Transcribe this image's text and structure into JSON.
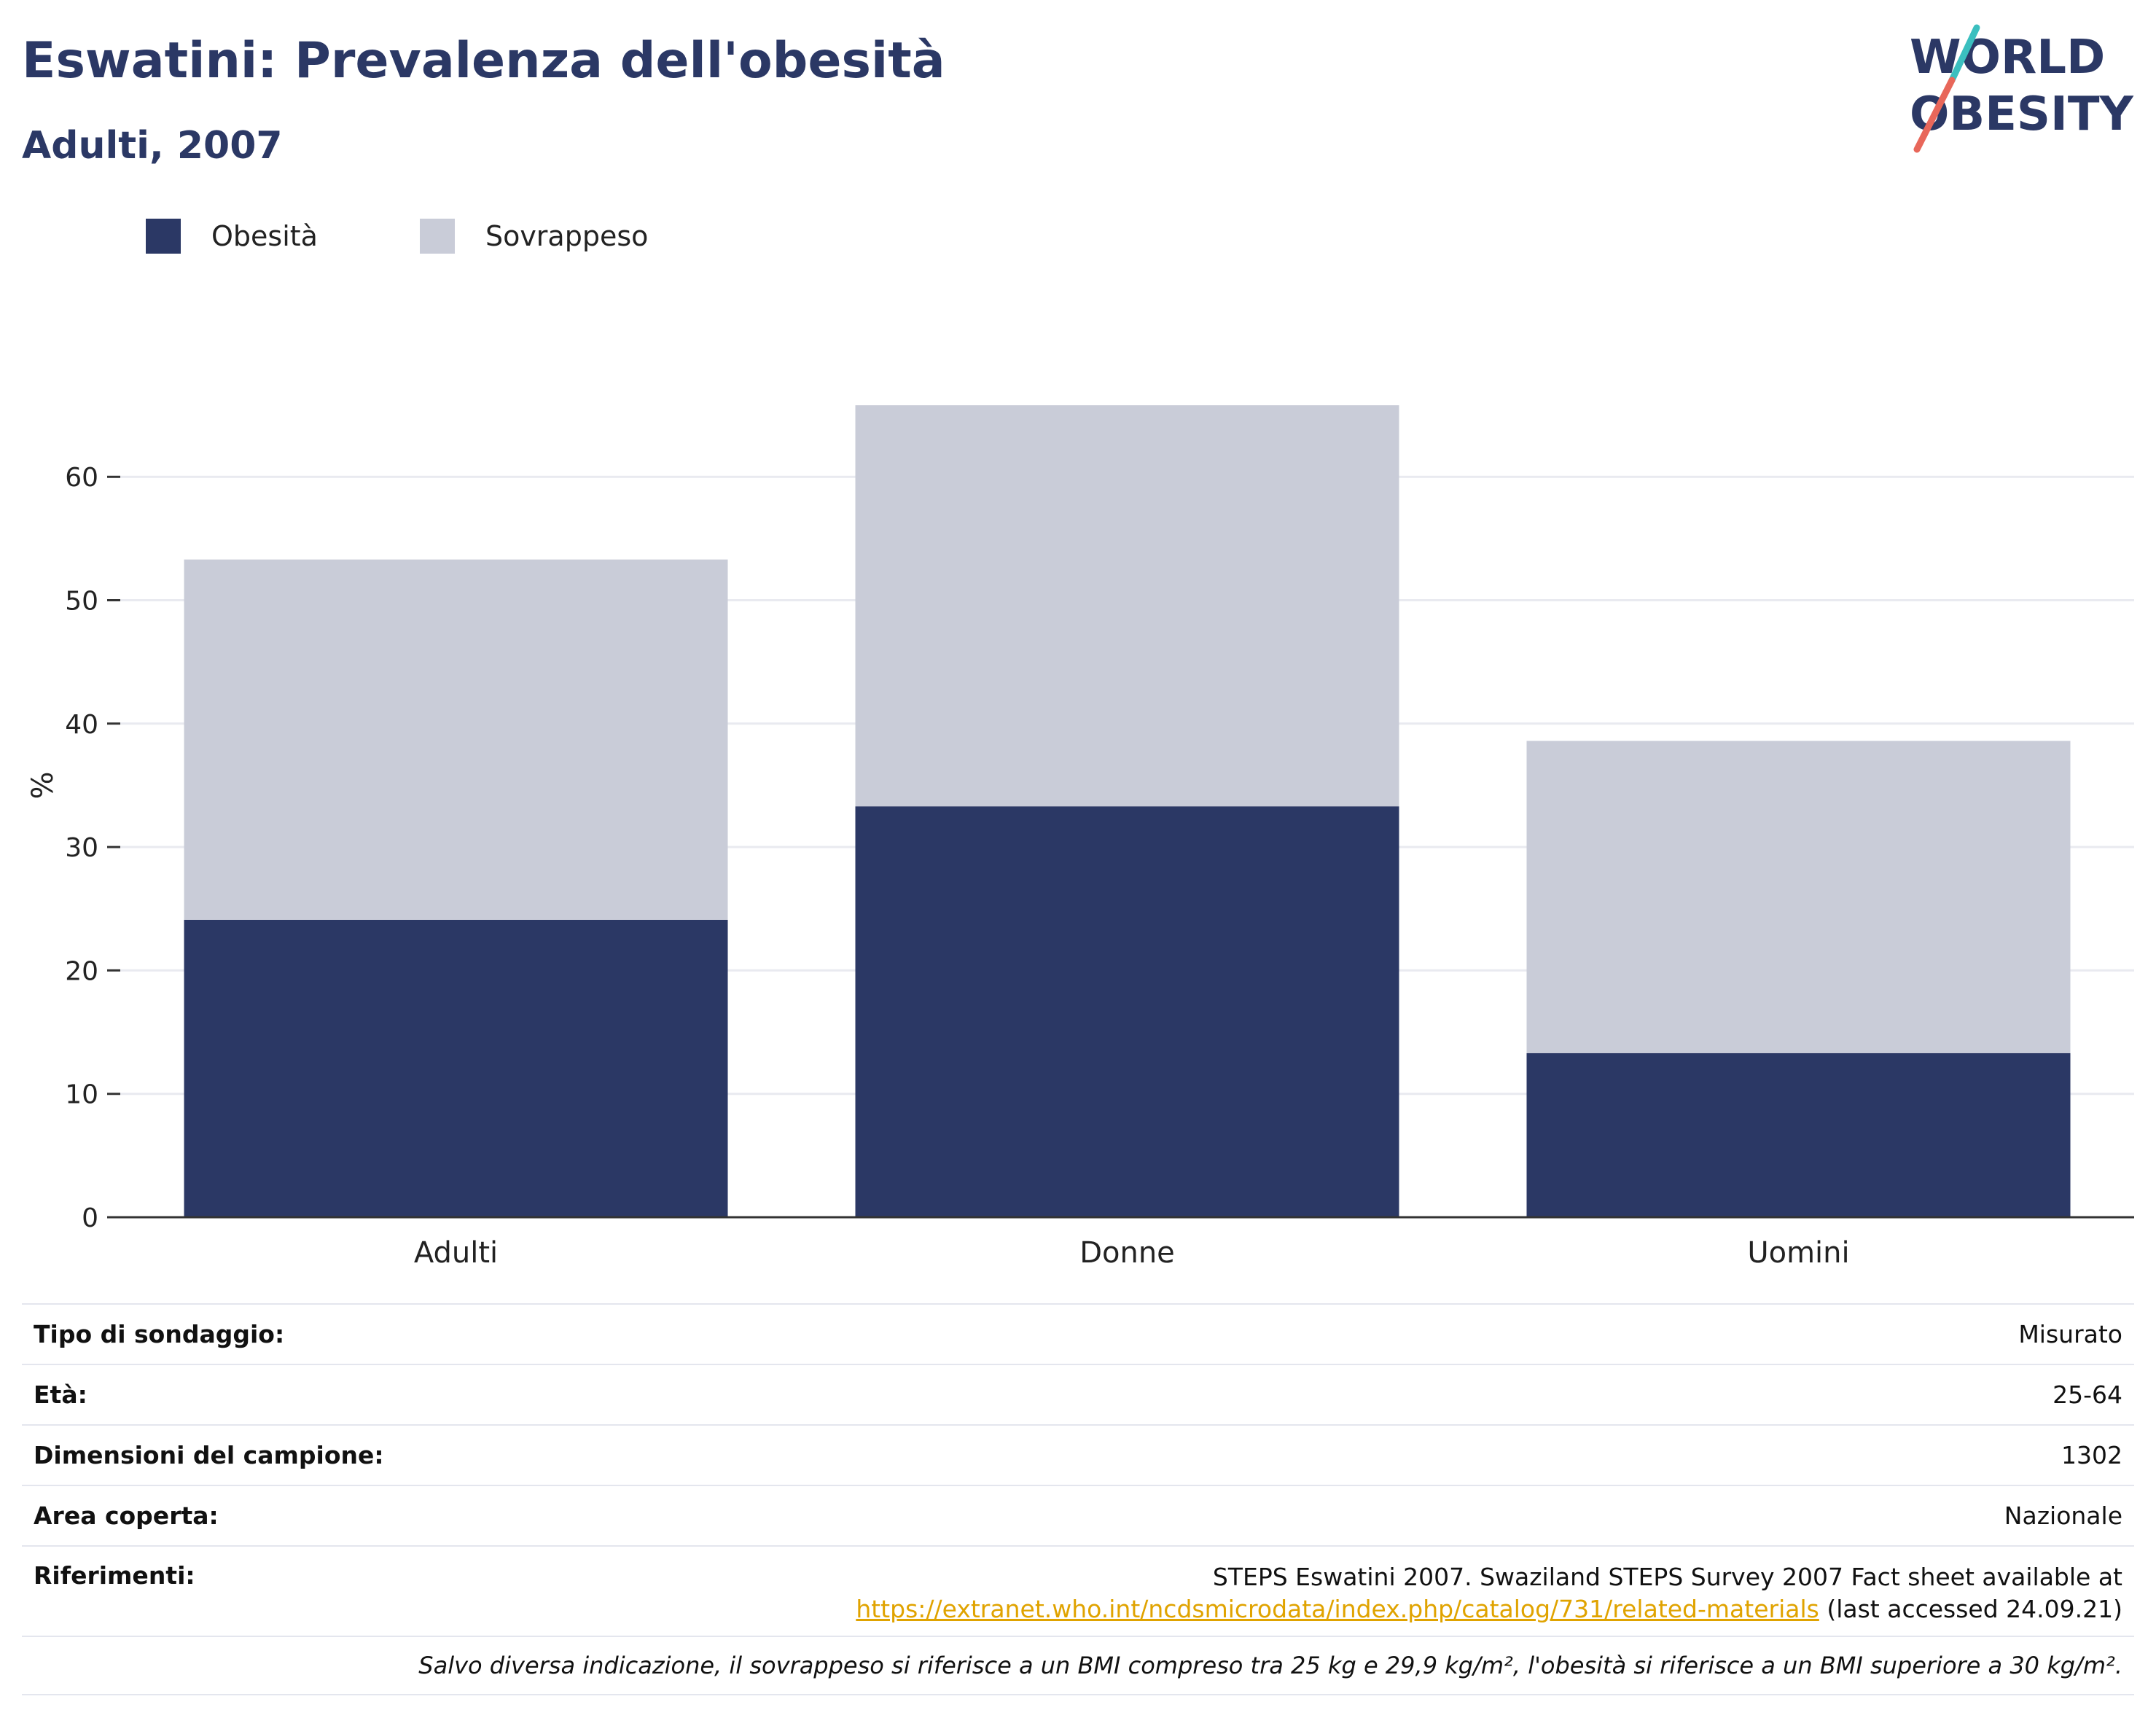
{
  "header": {
    "title": "Eswatini: Prevalenza dell'obesità",
    "subtitle": "Adulti, 2007"
  },
  "logo": {
    "line1": "WORLD",
    "line2": "OBESITY",
    "text_color": "#2b3865",
    "slash_top_color": "#3bbfbf",
    "slash_bottom_color": "#e8675a"
  },
  "legend": {
    "items": [
      {
        "label": "Obesità",
        "color": "#2b3865"
      },
      {
        "label": "Sovrappeso",
        "color": "#c9ccd8"
      }
    ]
  },
  "chart_data": {
    "type": "bar",
    "stacked": true,
    "categories": [
      "Adulti",
      "Donne",
      "Uomini"
    ],
    "series": [
      {
        "name": "Obesità",
        "color": "#2b3865",
        "values": [
          24.1,
          33.3,
          13.3
        ]
      },
      {
        "name": "Sovrappeso",
        "color": "#c9ccd8",
        "values": [
          29.2,
          32.5,
          25.3
        ]
      }
    ],
    "ylabel": "%",
    "ylim": [
      0,
      70
    ],
    "yticks": [
      0,
      10,
      20,
      30,
      40,
      50,
      60
    ],
    "grid": true,
    "legend_position": "top-left"
  },
  "info": {
    "rows": [
      {
        "label": "Tipo di sondaggio:",
        "value": "Misurato"
      },
      {
        "label": "Età:",
        "value": "25-64"
      },
      {
        "label": "Dimensioni del campione:",
        "value": "1302"
      },
      {
        "label": "Area coperta:",
        "value": "Nazionale"
      }
    ],
    "references": {
      "label": "Riferimenti:",
      "text": "STEPS Eswatini 2007. Swaziland STEPS Survey 2007 Fact sheet available at",
      "link": "https://extranet.who.int/ncdsmicrodata/index.php/catalog/731/related-materials",
      "suffix": " (last accessed 24.09.21)"
    },
    "note": "Salvo diversa indicazione, il sovrappeso si riferisce a un BMI compreso tra 25 kg e 29,9 kg/m², l'obesità si riferisce a un BMI superiore a 30 kg/m²."
  }
}
